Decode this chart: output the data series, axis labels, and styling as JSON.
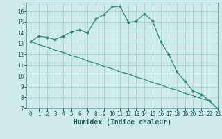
{
  "x": [
    0,
    1,
    2,
    3,
    4,
    5,
    6,
    7,
    8,
    9,
    10,
    11,
    12,
    13,
    14,
    15,
    16,
    17,
    18,
    19,
    20,
    21,
    22,
    23
  ],
  "y_curve": [
    13.2,
    13.7,
    13.6,
    13.4,
    13.7,
    14.1,
    14.3,
    14.0,
    15.3,
    15.7,
    16.4,
    16.5,
    15.0,
    15.1,
    15.8,
    15.1,
    13.2,
    12.0,
    10.4,
    9.5,
    8.6,
    8.3,
    7.7,
    7.0
  ],
  "y_line": [
    13.2,
    12.9,
    12.7,
    12.4,
    12.2,
    11.9,
    11.7,
    11.4,
    11.2,
    10.9,
    10.7,
    10.4,
    10.2,
    9.9,
    9.7,
    9.4,
    9.2,
    8.9,
    8.7,
    8.4,
    8.2,
    7.9,
    7.7,
    7.0
  ],
  "line_color": "#2e8b7a",
  "bg_color": "#ceeaea",
  "grid_color": "#aed4d4",
  "xlabel": "Humidex (Indice chaleur)",
  "ylim": [
    7,
    16.8
  ],
  "xlim": [
    -0.5,
    23
  ],
  "yticks": [
    7,
    8,
    9,
    10,
    11,
    12,
    13,
    14,
    15,
    16
  ],
  "xticks": [
    0,
    1,
    2,
    3,
    4,
    5,
    6,
    7,
    8,
    9,
    10,
    11,
    12,
    13,
    14,
    15,
    16,
    17,
    18,
    19,
    20,
    21,
    22,
    23
  ],
  "tick_fontsize": 5.5,
  "xlabel_fontsize": 7.0
}
